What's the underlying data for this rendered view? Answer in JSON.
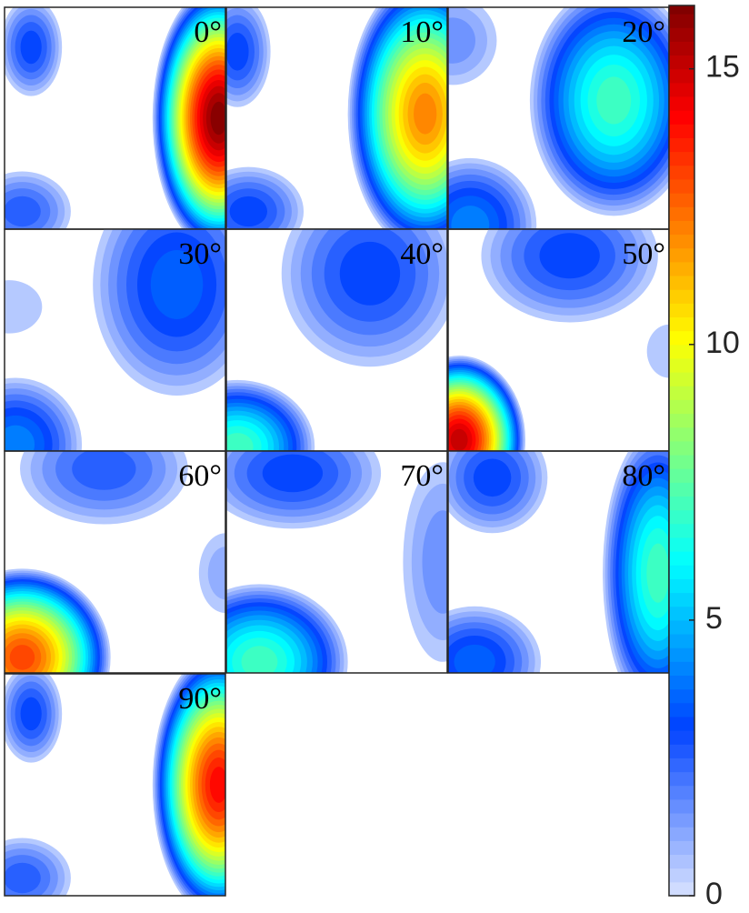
{
  "chart_data": {
    "type": "contour-panels",
    "panels": [
      {
        "label": "0°",
        "peaks": [
          3,
          16,
          2.5
        ]
      },
      {
        "label": "10°",
        "peaks": [
          3,
          12,
          3
        ]
      },
      {
        "label": "20°",
        "peaks": [
          1.5,
          7,
          4
        ]
      },
      {
        "label": "30°",
        "peaks": [
          3.5,
          4,
          0.5
        ]
      },
      {
        "label": "40°",
        "peaks": [
          3,
          7
        ]
      },
      {
        "label": "50°",
        "peaks": [
          3,
          15,
          0.8
        ]
      },
      {
        "label": "60°",
        "peaks": [
          2.5,
          13,
          1
        ]
      },
      {
        "label": "70°",
        "peaks": [
          3,
          7,
          1.5
        ]
      },
      {
        "label": "80°",
        "peaks": [
          3,
          7,
          3.5
        ]
      },
      {
        "label": "90°",
        "peaks": [
          3,
          14,
          2.5
        ]
      }
    ],
    "colorbar": {
      "ylim": [
        0,
        16.15
      ],
      "yticks": [
        0,
        5,
        10,
        15
      ]
    }
  }
}
